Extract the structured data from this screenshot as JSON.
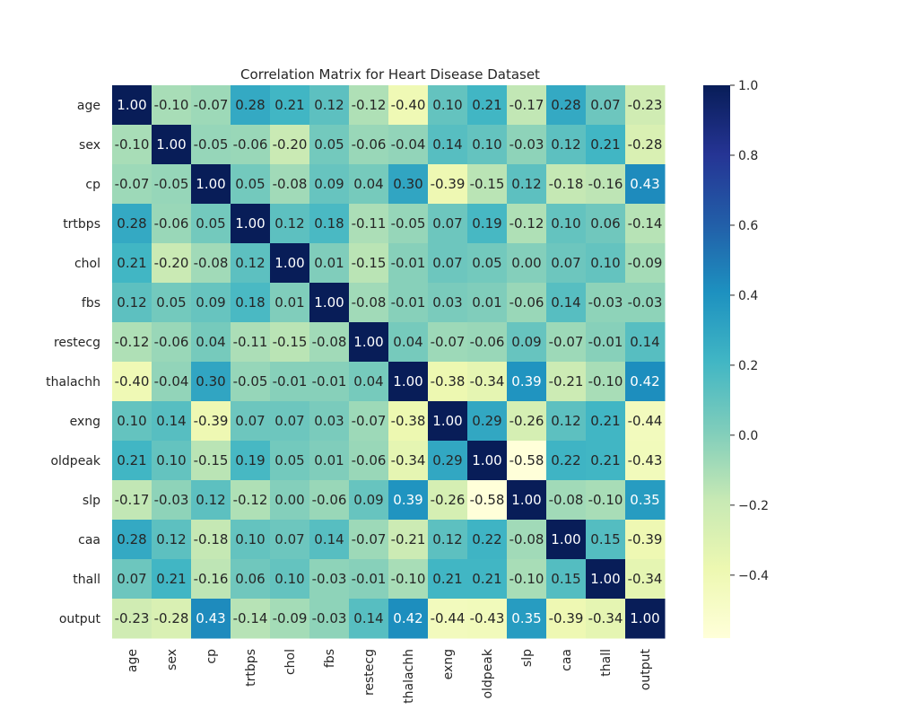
{
  "chart_data": {
    "type": "heatmap",
    "title": "Correlation Matrix for Heart Disease Dataset",
    "xlabel": "",
    "ylabel": "",
    "colormap": "YlGnBu",
    "categories": [
      "age",
      "sex",
      "cp",
      "trtbps",
      "chol",
      "fbs",
      "restecg",
      "thalachh",
      "exng",
      "oldpeak",
      "slp",
      "caa",
      "thall",
      "output"
    ],
    "values": [
      [
        1.0,
        -0.1,
        -0.07,
        0.28,
        0.21,
        0.12,
        -0.12,
        -0.4,
        0.1,
        0.21,
        -0.17,
        0.28,
        0.07,
        -0.23
      ],
      [
        -0.1,
        1.0,
        -0.05,
        -0.06,
        -0.2,
        0.05,
        -0.06,
        -0.04,
        0.14,
        0.1,
        -0.03,
        0.12,
        0.21,
        -0.28
      ],
      [
        -0.07,
        -0.05,
        1.0,
        0.05,
        -0.08,
        0.09,
        0.04,
        0.3,
        -0.39,
        -0.15,
        0.12,
        -0.18,
        -0.16,
        0.43
      ],
      [
        0.28,
        -0.06,
        0.05,
        1.0,
        0.12,
        0.18,
        -0.11,
        -0.05,
        0.07,
        0.19,
        -0.12,
        0.1,
        0.06,
        -0.14
      ],
      [
        0.21,
        -0.2,
        -0.08,
        0.12,
        1.0,
        0.01,
        -0.15,
        -0.01,
        0.07,
        0.05,
        -0.0,
        0.07,
        0.1,
        -0.09
      ],
      [
        0.12,
        0.05,
        0.09,
        0.18,
        0.01,
        1.0,
        -0.08,
        -0.01,
        0.03,
        0.01,
        -0.06,
        0.14,
        -0.03,
        -0.03
      ],
      [
        -0.12,
        -0.06,
        0.04,
        -0.11,
        -0.15,
        -0.08,
        1.0,
        0.04,
        -0.07,
        -0.06,
        0.09,
        -0.07,
        -0.01,
        0.14
      ],
      [
        -0.4,
        -0.04,
        0.3,
        -0.05,
        -0.01,
        -0.01,
        0.04,
        1.0,
        -0.38,
        -0.34,
        0.39,
        -0.21,
        -0.1,
        0.42
      ],
      [
        0.1,
        0.14,
        -0.39,
        0.07,
        0.07,
        0.03,
        -0.07,
        -0.38,
        1.0,
        0.29,
        -0.26,
        0.12,
        0.21,
        -0.44
      ],
      [
        0.21,
        0.1,
        -0.15,
        0.19,
        0.05,
        0.01,
        -0.06,
        -0.34,
        0.29,
        1.0,
        -0.58,
        0.22,
        0.21,
        -0.43
      ],
      [
        -0.17,
        -0.03,
        0.12,
        -0.12,
        -0.0,
        -0.06,
        0.09,
        0.39,
        -0.26,
        -0.58,
        1.0,
        -0.08,
        -0.1,
        0.35
      ],
      [
        0.28,
        0.12,
        -0.18,
        0.1,
        0.07,
        0.14,
        -0.07,
        -0.21,
        0.12,
        0.22,
        -0.08,
        1.0,
        0.15,
        -0.39
      ],
      [
        0.07,
        0.21,
        -0.16,
        0.06,
        0.1,
        -0.03,
        -0.01,
        -0.1,
        0.21,
        0.21,
        -0.1,
        0.15,
        1.0,
        -0.34
      ],
      [
        -0.23,
        -0.28,
        0.43,
        -0.14,
        -0.09,
        -0.03,
        0.14,
        0.42,
        -0.44,
        -0.43,
        0.35,
        -0.39,
        -0.34,
        1.0
      ]
    ],
    "colorbar": {
      "range": [
        -0.58,
        1.0
      ],
      "ticks": [
        "1.0",
        "0.8",
        "0.6",
        "0.4",
        "0.2",
        "0.0",
        "−0.2",
        "−0.4"
      ],
      "tick_values": [
        1.0,
        0.8,
        0.6,
        0.4,
        0.2,
        0.0,
        -0.2,
        -0.4
      ]
    },
    "annotations": "values shown in each cell, 2 decimals",
    "grid": false
  }
}
